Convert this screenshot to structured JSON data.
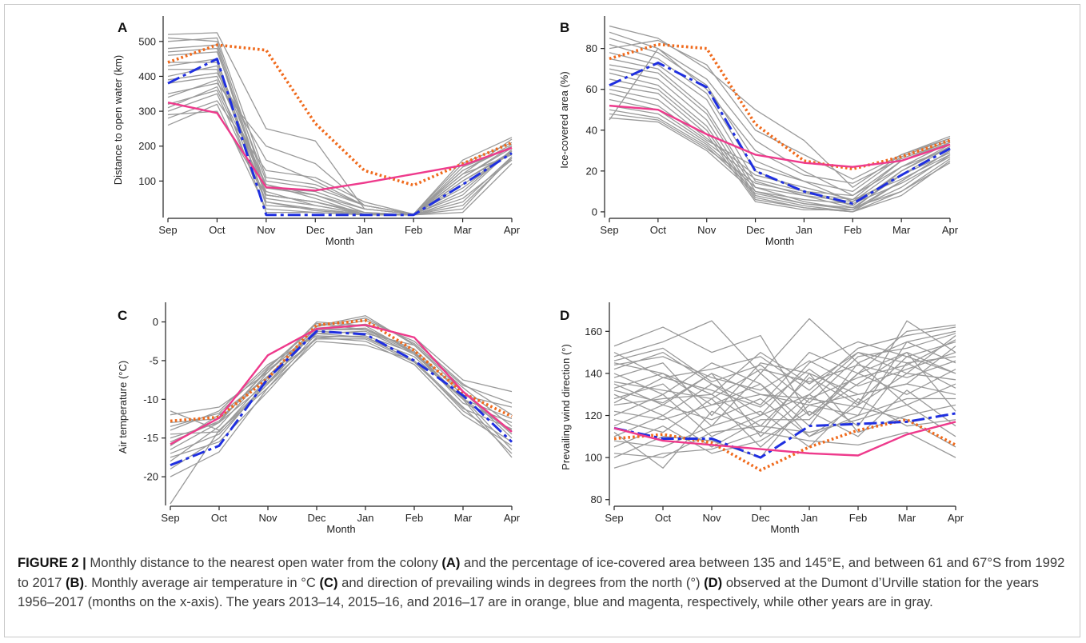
{
  "colors": {
    "gray_years": "#9a9a9a",
    "year_2013_14": "#f06a1c",
    "year_2015_16": "#1f2fe0",
    "year_2016_17": "#ee3a8c"
  },
  "chart_data": [
    {
      "panel": "A",
      "type": "line",
      "xlabel": "Month",
      "ylabel": "Distance to open water (km)",
      "categories": [
        "Sep",
        "Oct",
        "Nov",
        "Dec",
        "Jan",
        "Feb",
        "Mar",
        "Apr"
      ],
      "yticks": [
        100,
        200,
        300,
        400,
        500
      ],
      "ylim": [
        0,
        550
      ],
      "series": [
        {
          "values": [
            440,
            490,
            475,
            265,
            130,
            88,
            150,
            210
          ],
          "style": "orange"
        },
        {
          "values": [
            380,
            450,
            3,
            3,
            3,
            3,
            90,
            180
          ],
          "style": "blue"
        },
        {
          "values": [
            325,
            295,
            82,
            73,
            95,
            120,
            145,
            195
          ],
          "style": "magenta"
        }
      ],
      "gray_series": [
        [
          520,
          525,
          250,
          215,
          20,
          5,
          120,
          220
        ],
        [
          510,
          500,
          80,
          60,
          20,
          5,
          150,
          210
        ],
        [
          480,
          490,
          60,
          40,
          5,
          3,
          130,
          200
        ],
        [
          460,
          470,
          100,
          80,
          30,
          5,
          60,
          190
        ],
        [
          430,
          450,
          30,
          20,
          5,
          3,
          20,
          170
        ],
        [
          400,
          430,
          60,
          40,
          10,
          3,
          100,
          185
        ],
        [
          380,
          400,
          90,
          50,
          5,
          3,
          140,
          195
        ],
        [
          350,
          380,
          200,
          150,
          30,
          5,
          110,
          200
        ],
        [
          320,
          360,
          70,
          30,
          5,
          3,
          90,
          180
        ],
        [
          300,
          350,
          40,
          20,
          5,
          3,
          50,
          160
        ],
        [
          280,
          330,
          130,
          110,
          40,
          5,
          120,
          175
        ],
        [
          260,
          320,
          20,
          10,
          3,
          3,
          10,
          150
        ],
        [
          500,
          510,
          110,
          90,
          30,
          5,
          160,
          225
        ],
        [
          470,
          480,
          50,
          30,
          5,
          3,
          70,
          190
        ],
        [
          440,
          440,
          80,
          70,
          20,
          5,
          130,
          205
        ],
        [
          420,
          420,
          40,
          15,
          5,
          3,
          30,
          165
        ],
        [
          390,
          410,
          160,
          100,
          30,
          5,
          80,
          185
        ],
        [
          340,
          390,
          10,
          10,
          3,
          3,
          110,
          195
        ],
        [
          310,
          370,
          90,
          60,
          10,
          3,
          40,
          170
        ],
        [
          290,
          300,
          60,
          40,
          5,
          3,
          100,
          180
        ]
      ]
    },
    {
      "panel": "B",
      "type": "line",
      "xlabel": "Month",
      "ylabel": "Ice-covered area (%)",
      "categories": [
        "Sep",
        "Oct",
        "Nov",
        "Dec",
        "Jan",
        "Feb",
        "Mar",
        "Apr"
      ],
      "yticks": [
        0,
        20,
        40,
        60,
        80
      ],
      "ylim": [
        -2,
        92
      ],
      "series": [
        {
          "values": [
            75,
            82,
            80,
            43,
            25,
            21,
            27,
            35
          ],
          "style": "orange"
        },
        {
          "values": [
            62,
            73,
            61,
            20,
            10,
            4,
            18,
            31
          ],
          "style": "blue"
        },
        {
          "values": [
            52,
            50,
            38,
            28,
            24,
            22,
            25,
            33
          ],
          "style": "magenta"
        }
      ],
      "gray_series": [
        [
          91,
          85,
          70,
          50,
          35,
          12,
          28,
          37
        ],
        [
          88,
          80,
          65,
          35,
          20,
          8,
          25,
          35
        ],
        [
          85,
          78,
          62,
          25,
          15,
          5,
          22,
          34
        ],
        [
          82,
          75,
          58,
          20,
          10,
          3,
          20,
          33
        ],
        [
          78,
          72,
          55,
          15,
          8,
          2,
          18,
          32
        ],
        [
          75,
          70,
          50,
          12,
          5,
          1,
          15,
          30
        ],
        [
          72,
          68,
          48,
          10,
          4,
          1,
          12,
          28
        ],
        [
          70,
          65,
          45,
          8,
          3,
          0,
          10,
          26
        ],
        [
          68,
          62,
          42,
          7,
          2,
          0,
          8,
          25
        ],
        [
          65,
          60,
          40,
          6,
          2,
          0,
          15,
          30
        ],
        [
          62,
          58,
          38,
          5,
          1,
          1,
          20,
          32
        ],
        [
          60,
          55,
          36,
          18,
          12,
          6,
          25,
          34
        ],
        [
          58,
          52,
          35,
          22,
          15,
          10,
          27,
          36
        ],
        [
          55,
          50,
          34,
          16,
          10,
          8,
          22,
          31
        ],
        [
          52,
          48,
          33,
          12,
          8,
          5,
          18,
          29
        ],
        [
          50,
          46,
          32,
          10,
          6,
          4,
          14,
          27
        ],
        [
          48,
          45,
          31,
          14,
          9,
          6,
          16,
          28
        ],
        [
          46,
          44,
          30,
          9,
          4,
          2,
          10,
          24
        ],
        [
          45,
          80,
          60,
          30,
          18,
          14,
          26,
          35
        ],
        [
          80,
          84,
          72,
          40,
          28,
          16,
          28,
          36
        ]
      ]
    },
    {
      "panel": "C",
      "type": "line",
      "xlabel": "Month",
      "ylabel": "Air temperature (°C)",
      "categories": [
        "Sep",
        "Oct",
        "Nov",
        "Dec",
        "Jan",
        "Feb",
        "Mar",
        "Apr"
      ],
      "yticks": [
        0,
        -5,
        -10,
        -15,
        -20
      ],
      "ylim": [
        -23.5,
        1.5
      ],
      "series": [
        {
          "values": [
            -12.8,
            -12.3,
            -7.3,
            -0.4,
            0.2,
            -3.7,
            -9.2,
            -12.2
          ],
          "style": "orange"
        },
        {
          "values": [
            -18.5,
            -16.0,
            -7.3,
            -1.2,
            -1.6,
            -5.0,
            -9.5,
            -15.5
          ],
          "style": "blue"
        },
        {
          "values": [
            -15.8,
            -12.4,
            -4.3,
            -0.9,
            -0.4,
            -2.0,
            -9.0,
            -14.2
          ],
          "style": "magenta"
        }
      ],
      "gray_series": [
        [
          -23.5,
          -14,
          -8,
          -1,
          -1,
          -4,
          -10,
          -17.5
        ],
        [
          -20,
          -16.8,
          -8.5,
          -1.5,
          -2,
          -5,
          -11,
          -17
        ],
        [
          -19,
          -15,
          -7.5,
          -0.5,
          0.8,
          -3,
          -9,
          -15
        ],
        [
          -18,
          -13.5,
          -6.5,
          0,
          -0.5,
          -4,
          -10.5,
          -13
        ],
        [
          -17,
          -14.5,
          -8,
          -2,
          -2.5,
          -5.5,
          -12,
          -16
        ],
        [
          -16,
          -12,
          -7,
          -1,
          0.2,
          -2.5,
          -8,
          -12
        ],
        [
          -15,
          -13,
          -6,
          -0.2,
          -1,
          -3.5,
          -9.5,
          -11
        ],
        [
          -14,
          -11.5,
          -5.5,
          -1.8,
          -2,
          -4.5,
          -10,
          -14
        ],
        [
          -13,
          -12.5,
          -7,
          -1.2,
          -1.5,
          -3,
          -8.5,
          -13.5
        ],
        [
          -12,
          -11,
          -6.5,
          -0.8,
          -0.3,
          -2,
          -7.5,
          -9
        ],
        [
          -11.5,
          -14,
          -8.5,
          -2.5,
          -3,
          -5,
          -11.5,
          -15.5
        ],
        [
          -17.5,
          -15.5,
          -9,
          -2,
          -1.8,
          -4,
          -9,
          -14.5
        ],
        [
          -16.5,
          -13,
          -7.8,
          -1,
          -0.8,
          -3.8,
          -10,
          -12.5
        ],
        [
          -15.5,
          -12.8,
          -6.2,
          -1.5,
          -1.2,
          -4.2,
          -9.8,
          -16.5
        ],
        [
          -14.5,
          -14.2,
          -7.2,
          -2.2,
          -2.2,
          -5.2,
          -11.2,
          -13.8
        ],
        [
          -13.5,
          -11.8,
          -5.8,
          -0.6,
          0.5,
          -2.8,
          -8.2,
          -10.5
        ]
      ]
    },
    {
      "panel": "D",
      "type": "line",
      "xlabel": "Month",
      "ylabel": "Prevailing wind direction (°)",
      "categories": [
        "Sep",
        "Oct",
        "Nov",
        "Dec",
        "Jan",
        "Feb",
        "Mar",
        "Apr"
      ],
      "yticks": [
        80,
        100,
        120,
        140,
        160
      ],
      "ylim": [
        78,
        170
      ],
      "series": [
        {
          "values": [
            109,
            111,
            107,
            94,
            105,
            113,
            118,
            106
          ],
          "style": "orange"
        },
        {
          "values": [
            114,
            109,
            109,
            100,
            115,
            116,
            117,
            121
          ],
          "style": "blue"
        },
        {
          "values": [
            114,
            108,
            106,
            104,
            102,
            101,
            111,
            117
          ],
          "style": "magenta"
        }
      ],
      "gray_series": [
        [
          153,
          162,
          150,
          158,
          120,
          140,
          160,
          163
        ],
        [
          148,
          155,
          165,
          140,
          166,
          145,
          155,
          160
        ],
        [
          145,
          140,
          130,
          150,
          135,
          150,
          140,
          158
        ],
        [
          142,
          150,
          135,
          120,
          145,
          155,
          148,
          155
        ],
        [
          140,
          130,
          145,
          135,
          110,
          125,
          165,
          150
        ],
        [
          138,
          145,
          120,
          145,
          140,
          130,
          135,
          153
        ],
        [
          135,
          125,
          140,
          110,
          130,
          150,
          145,
          148
        ],
        [
          133,
          140,
          125,
          130,
          125,
          120,
          155,
          145
        ],
        [
          130,
          120,
          135,
          125,
          150,
          140,
          130,
          142
        ],
        [
          128,
          135,
          115,
          140,
          120,
          135,
          150,
          140
        ],
        [
          125,
          128,
          130,
          115,
          138,
          125,
          140,
          137
        ],
        [
          122,
          118,
          125,
          135,
          115,
          145,
          125,
          135
        ],
        [
          120,
          130,
          110,
          120,
          130,
          115,
          145,
          133
        ],
        [
          118,
          112,
          128,
          105,
          125,
          130,
          135,
          130
        ],
        [
          115,
          125,
          118,
          128,
          110,
          120,
          128,
          128
        ],
        [
          112,
          95,
          122,
          112,
          140,
          112,
          120,
          125
        ],
        [
          110,
          120,
          105,
          118,
          118,
          140,
          150,
          122
        ],
        [
          108,
          105,
          115,
          122,
          105,
          128,
          115,
          118
        ],
        [
          105,
          115,
          102,
          108,
          122,
          110,
          132,
          115
        ],
        [
          102,
          100,
          112,
          115,
          112,
          118,
          125,
          110
        ],
        [
          100,
          110,
          108,
          100,
          128,
          124,
          118,
          105
        ],
        [
          95,
          102,
          104,
          112,
          108,
          106,
          112,
          100
        ],
        [
          150,
          138,
          142,
          148,
          132,
          152,
          158,
          162
        ],
        [
          144,
          148,
          138,
          132,
          146,
          134,
          142,
          150
        ],
        [
          136,
          132,
          128,
          142,
          136,
          144,
          138,
          146
        ],
        [
          126,
          138,
          132,
          124,
          142,
          126,
          148,
          140
        ],
        [
          132,
          126,
          140,
          130,
          128,
          138,
          144,
          156
        ],
        [
          146,
          152,
          136,
          144,
          126,
          148,
          152,
          159
        ]
      ]
    }
  ],
  "caption": {
    "label": "FIGURE 2 |",
    "t1": " Monthly distance to the nearest open water from the colony ",
    "a": "(A)",
    "t2": " and the percentage of ice-covered area between 135 and 145°E, and between 61 and 67°S from 1992 to 2017 ",
    "b": "(B)",
    "t3": ". Monthly average air temperature in °C ",
    "c": "(C)",
    "t4": " and direction of prevailing winds in degrees from the north (°) ",
    "d": "(D)",
    "t5": " observed at the Dumont d’Urville station for the years 1956–2017 (months on the x-axis). The years 2013–14, 2015–16, and 2016–17 are in orange, blue and magenta, respectively, while other years are in gray."
  }
}
